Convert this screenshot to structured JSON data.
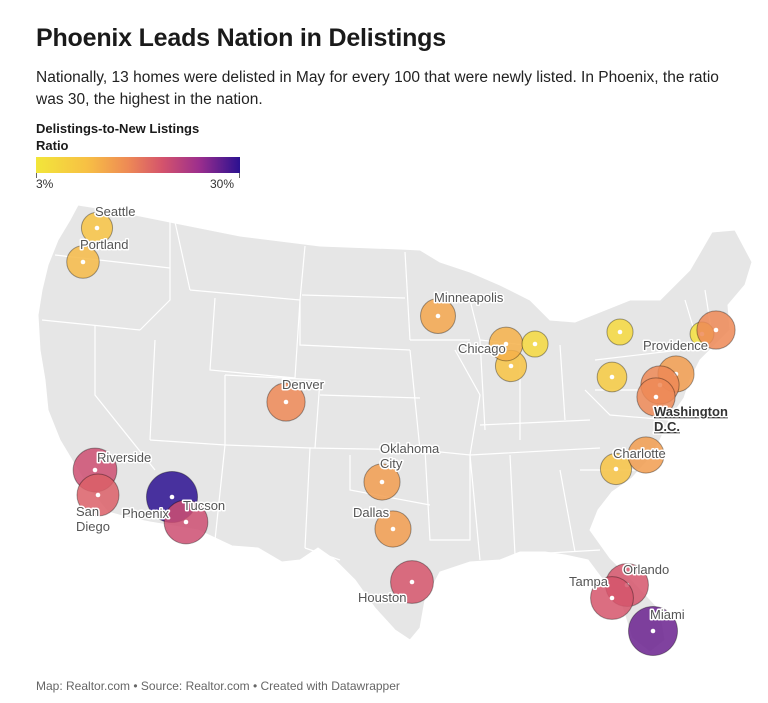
{
  "title": "Phoenix Leads Nation in Delistings",
  "subtitle": "Nationally, 13 homes were delisted in May for every 100 that were newly listed. In Phoenix, the ratio was 30, the highest in the nation.",
  "legend": {
    "title_line1": "Delistings-to-New Listings",
    "title_line2": "Ratio",
    "min_label": "3%",
    "max_label": "30%",
    "min": 3,
    "max": 30,
    "colors": [
      "#f2e63a",
      "#f7c044",
      "#ee8a55",
      "#d4536c",
      "#9c2e8d",
      "#2b1190"
    ]
  },
  "footer": "Map: Realtor.com • Source: Realtor.com • Created with Datawrapper",
  "map": {
    "land_color": "#e6e6e6",
    "border_color": "#ffffff"
  },
  "cities": [
    {
      "name": "Seattle",
      "ratio": 8,
      "label": "Seattle"
    },
    {
      "name": "Portland",
      "ratio": 9,
      "label": "Portland"
    },
    {
      "name": "Riverside",
      "ratio": 20,
      "label": "Riverside"
    },
    {
      "name": "San Diego",
      "ratio": 18,
      "label": "San Diego"
    },
    {
      "name": "Phoenix",
      "ratio": 30,
      "label": "Phoenix"
    },
    {
      "name": "Tucson",
      "ratio": 20,
      "label": "Tucson"
    },
    {
      "name": "Denver",
      "ratio": 14,
      "label": "Denver"
    },
    {
      "name": "Oklahoma City",
      "ratio": 12,
      "label": "Oklahoma City"
    },
    {
      "name": "Dallas",
      "ratio": 12,
      "label": "Dallas"
    },
    {
      "name": "Houston",
      "ratio": 19,
      "label": "Houston"
    },
    {
      "name": "Minneapolis",
      "ratio": 11,
      "label": "Minneapolis"
    },
    {
      "name": "Chicago",
      "ratio": 8,
      "label": "Chicago"
    },
    {
      "name": "Chicago area",
      "ratio": 10,
      "label": ""
    },
    {
      "name": "Detroit",
      "ratio": 5,
      "label": ""
    },
    {
      "name": "Buffalo",
      "ratio": 5,
      "label": ""
    },
    {
      "name": "Pittsburgh",
      "ratio": 7,
      "label": ""
    },
    {
      "name": "New York",
      "ratio": 12,
      "label": ""
    },
    {
      "name": "Philadelphia",
      "ratio": 14,
      "label": ""
    },
    {
      "name": "Washington D.C.",
      "ratio": 14,
      "label": "Washington D.C."
    },
    {
      "name": "Providence",
      "ratio": 4,
      "label": "Providence"
    },
    {
      "name": "Boston",
      "ratio": 14,
      "label": ""
    },
    {
      "name": "Charlotte",
      "ratio": 8,
      "label": "Charlotte"
    },
    {
      "name": "Raleigh",
      "ratio": 12,
      "label": ""
    },
    {
      "name": "Orlando",
      "ratio": 19,
      "label": "Orlando"
    },
    {
      "name": "Tampa",
      "ratio": 19,
      "label": "Tampa"
    },
    {
      "name": "Miami",
      "ratio": 27,
      "label": "Miami"
    }
  ]
}
